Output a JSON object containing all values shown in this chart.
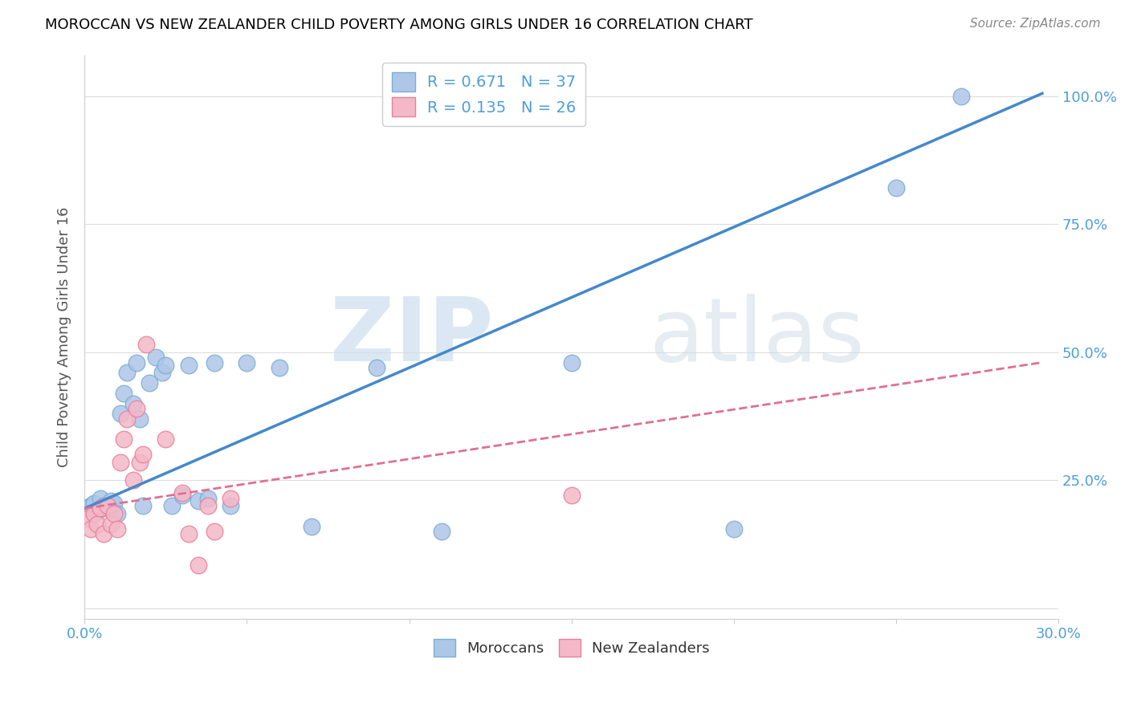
{
  "title": "MOROCCAN VS NEW ZEALANDER CHILD POVERTY AMONG GIRLS UNDER 16 CORRELATION CHART",
  "source": "Source: ZipAtlas.com",
  "ylabel": "Child Poverty Among Girls Under 16",
  "xlim": [
    0.0,
    0.3
  ],
  "ylim": [
    -0.02,
    1.08
  ],
  "moroccan_color": "#aec6e8",
  "moroccan_edge": "#7aaed6",
  "nz_color": "#f4b8c8",
  "nz_edge": "#e8829a",
  "R_moroccan": 0.671,
  "N_moroccan": 37,
  "R_nz": 0.135,
  "N_nz": 26,
  "moroccan_line_color": "#4488cc",
  "nz_line_color": "#e07090",
  "grid_color": "#dddddd",
  "moroccan_x": [
    0.001,
    0.002,
    0.003,
    0.004,
    0.005,
    0.006,
    0.007,
    0.008,
    0.009,
    0.01,
    0.011,
    0.012,
    0.013,
    0.015,
    0.016,
    0.017,
    0.018,
    0.02,
    0.022,
    0.024,
    0.025,
    0.027,
    0.03,
    0.032,
    0.035,
    0.038,
    0.04,
    0.045,
    0.05,
    0.06,
    0.07,
    0.09,
    0.11,
    0.15,
    0.2,
    0.25,
    0.27
  ],
  "moroccan_y": [
    0.195,
    0.2,
    0.205,
    0.19,
    0.215,
    0.2,
    0.195,
    0.21,
    0.205,
    0.185,
    0.38,
    0.42,
    0.46,
    0.4,
    0.48,
    0.37,
    0.2,
    0.44,
    0.49,
    0.46,
    0.475,
    0.2,
    0.22,
    0.475,
    0.21,
    0.215,
    0.48,
    0.2,
    0.48,
    0.47,
    0.16,
    0.47,
    0.15,
    0.48,
    0.155,
    0.82,
    1.0
  ],
  "nz_x": [
    0.001,
    0.002,
    0.003,
    0.004,
    0.005,
    0.006,
    0.007,
    0.008,
    0.009,
    0.01,
    0.011,
    0.012,
    0.013,
    0.015,
    0.016,
    0.017,
    0.018,
    0.019,
    0.025,
    0.03,
    0.032,
    0.035,
    0.038,
    0.04,
    0.045,
    0.15
  ],
  "nz_y": [
    0.175,
    0.155,
    0.185,
    0.165,
    0.195,
    0.145,
    0.2,
    0.165,
    0.185,
    0.155,
    0.285,
    0.33,
    0.37,
    0.25,
    0.39,
    0.285,
    0.3,
    0.515,
    0.33,
    0.225,
    0.145,
    0.085,
    0.2,
    0.15,
    0.215,
    0.22
  ]
}
